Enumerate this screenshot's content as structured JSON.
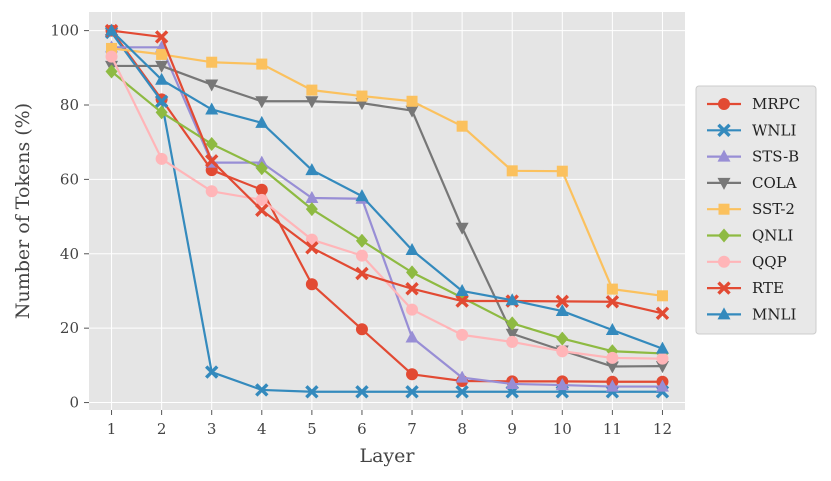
{
  "chart_data": {
    "type": "line",
    "title": "",
    "xlabel": "Layer",
    "ylabel": "Number of Tokens (%)",
    "x": [
      1,
      2,
      3,
      4,
      5,
      6,
      7,
      8,
      9,
      10,
      11,
      12
    ],
    "xlim": [
      0.55,
      12.45
    ],
    "ylim": [
      -2,
      105
    ],
    "yticks": [
      0,
      20,
      40,
      60,
      80,
      100
    ],
    "grid": true,
    "legend_position": "right",
    "background": "#e5e5e5",
    "series": [
      {
        "name": "MRPC",
        "color": "#e24a33",
        "marker": "circle",
        "values": [
          100,
          81.5,
          62.5,
          57.2,
          31.8,
          19.7,
          7.6,
          5.8,
          5.7,
          5.7,
          5.6,
          5.6
        ]
      },
      {
        "name": "WNLI",
        "color": "#348abd",
        "marker": "x",
        "values": [
          99.5,
          81,
          8.2,
          3.4,
          2.9,
          2.9,
          2.9,
          2.9,
          2.9,
          2.9,
          2.9,
          2.9
        ]
      },
      {
        "name": "STS-B",
        "color": "#988ed5",
        "marker": "triangle-up",
        "values": [
          95.5,
          95.5,
          64.5,
          64.5,
          55,
          54.8,
          17.5,
          6.7,
          5,
          4.7,
          4.3,
          4.3
        ]
      },
      {
        "name": "COLA",
        "color": "#777777",
        "marker": "triangle-down",
        "values": [
          90.5,
          90.5,
          85.5,
          81,
          81,
          80.5,
          78.5,
          47,
          18.5,
          14,
          9.7,
          9.8
        ]
      },
      {
        "name": "SST-2",
        "color": "#fbc15e",
        "marker": "square",
        "values": [
          95.2,
          93.6,
          91.5,
          91,
          84,
          82.4,
          81,
          74.3,
          62.3,
          62.2,
          30.5,
          28.7
        ]
      },
      {
        "name": "QNLI",
        "color": "#8eba42",
        "marker": "diamond",
        "values": [
          89,
          78,
          69.5,
          63,
          52,
          43.5,
          35,
          28.2,
          21.3,
          17.2,
          13.8,
          13.2
        ]
      },
      {
        "name": "QQP",
        "color": "#ffb5b8",
        "marker": "circle",
        "values": [
          93,
          65.5,
          56.8,
          54.5,
          43.8,
          39.5,
          25,
          18.2,
          16.3,
          13.8,
          12,
          11.8
        ]
      },
      {
        "name": "RTE",
        "color": "#e24a33",
        "marker": "x",
        "values": [
          100,
          98.3,
          65,
          51.7,
          41.6,
          34.7,
          30.6,
          27.3,
          27.3,
          27.2,
          27.1,
          24
        ]
      },
      {
        "name": "MNLI",
        "color": "#348abd",
        "marker": "triangle-up",
        "values": [
          100,
          86.8,
          78.8,
          75.2,
          62.5,
          55.5,
          41,
          30,
          27.5,
          24.6,
          19.5,
          14.5
        ]
      }
    ]
  }
}
